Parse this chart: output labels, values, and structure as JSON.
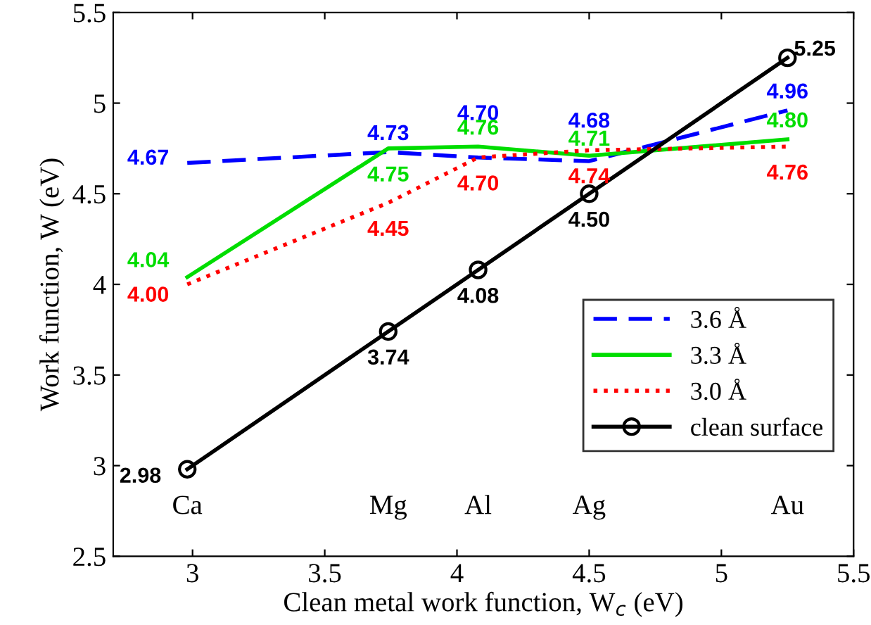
{
  "chart_data": {
    "type": "line",
    "xlabel": "Clean metal work function, W$_{c}$ (eV)",
    "ylabel": "Work function, W (eV)",
    "x": [
      2.98,
      3.74,
      4.08,
      4.5,
      5.25
    ],
    "series": [
      {
        "name": "3.6 Å",
        "color": "#0000ff",
        "values": [
          4.67,
          4.73,
          4.7,
          4.68,
          4.96
        ],
        "value_labels": [
          "4.67",
          "4.73",
          "4.70",
          "4.68",
          "4.96"
        ],
        "line_style": "dashed",
        "marker": "none"
      },
      {
        "name": "3.3 Å",
        "color": "#00dd00",
        "values": [
          4.04,
          4.75,
          4.76,
          4.71,
          4.8
        ],
        "value_labels": [
          "4.04",
          "4.75",
          "4.76",
          "4.71",
          "4.80"
        ],
        "line_style": "solid",
        "marker": "none"
      },
      {
        "name": "3.0 Å",
        "color": "#ff0000",
        "values": [
          4.0,
          4.45,
          4.7,
          4.74,
          4.76
        ],
        "value_labels": [
          "4.00",
          "4.45",
          "4.70",
          "4.74",
          "4.76"
        ],
        "line_style": "dotted",
        "marker": "none"
      },
      {
        "name": "clean surface",
        "color": "#000000",
        "values": [
          2.98,
          3.74,
          4.08,
          4.5,
          5.25
        ],
        "value_labels": [
          "2.98",
          "3.74",
          "4.08",
          "4.50",
          "5.25"
        ],
        "line_style": "solid",
        "marker": "circle"
      }
    ],
    "annotations": [
      "Ca",
      "Mg",
      "Al",
      "Ag",
      "Au"
    ],
    "xlim": [
      2.7,
      5.5
    ],
    "xticks": [
      3,
      3.5,
      4,
      4.5,
      5,
      5.5
    ],
    "ylim": [
      2.5,
      5.5
    ],
    "yticks": [
      2.5,
      3,
      3.5,
      4,
      4.5,
      5,
      5.5
    ],
    "grid": false,
    "legend": "bottom right"
  }
}
